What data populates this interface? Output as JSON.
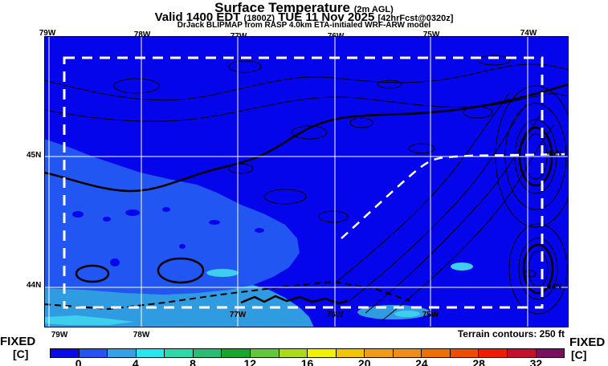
{
  "header": {
    "title": "Surface Temperature",
    "title_unit": "(2m AGL)",
    "valid_prefix": "Valid 1400 EDT",
    "valid_zulu": "(1800Z)",
    "valid_date": "TUE 11 Nov 2025",
    "valid_fcst": "[42hrFcst@0320z]",
    "model_line": "DrJack BLIPMAP from RASP 4.0km ETA-initialed WRF-ARW model"
  },
  "map": {
    "top_lon_labels": [
      "79W",
      "78W",
      "77W",
      "76W",
      "75W",
      "74W"
    ],
    "bottom_inside_lon_labels": [
      "77W",
      "76W",
      "75W"
    ],
    "bottom_outside_lon_labels": [
      "79W",
      "78W"
    ],
    "left_lat_labels": [
      "45N",
      "44N"
    ],
    "right_lat_labels": [
      "45N",
      "44N"
    ],
    "fill_colors": {
      "deep_blue": "#0505EC",
      "medium_blue": "#2156F2",
      "light_blue": "#2F9BE1",
      "cyan": "#3ECFEF"
    },
    "grid_color": "#ffffff",
    "contour_color": "#000000"
  },
  "footer": {
    "left_fixed": "FIXED",
    "left_units": "[C]",
    "right_fixed": "FIXED",
    "right_units": "[C]",
    "terrain_note": "Terrain contours: 250 ft"
  },
  "colorbar": {
    "tick_labels": [
      "0",
      "4",
      "8",
      "12",
      "16",
      "20",
      "24",
      "28",
      "32"
    ],
    "value_min": -2,
    "value_max": 34,
    "step_degC": 2,
    "segment_colors": [
      "#0B0BE8",
      "#2353F0",
      "#35A2E8",
      "#25E8EE",
      "#2BD9A9",
      "#28BE72",
      "#16A82D",
      "#63C838",
      "#ABDB18",
      "#F2F200",
      "#F0C400",
      "#EE9C16",
      "#EF8D16",
      "#EE7000",
      "#EE4D00",
      "#F01C00",
      "#C4102E",
      "#7A1060"
    ]
  }
}
